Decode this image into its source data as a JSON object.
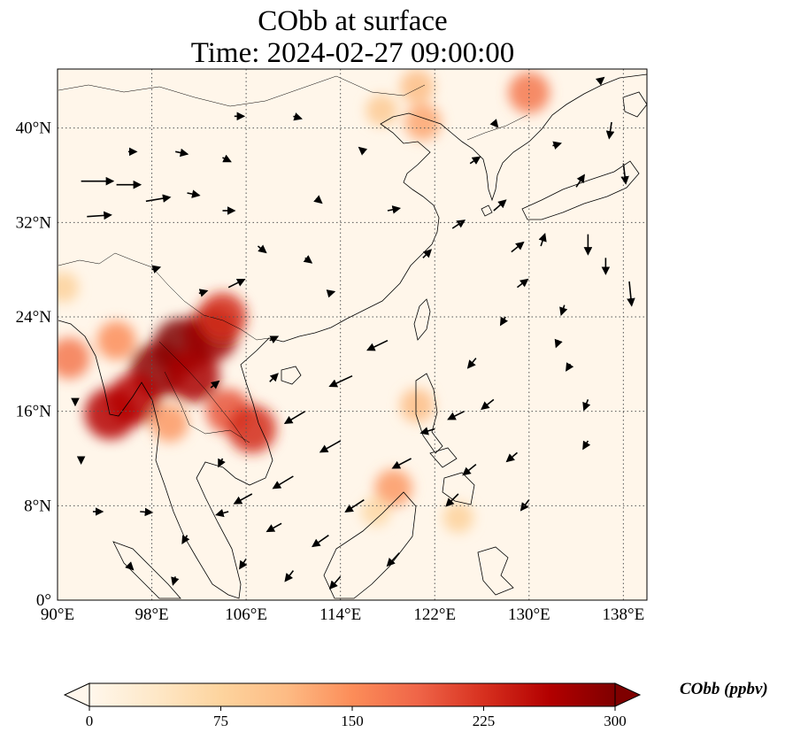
{
  "title_line1": "CObb at surface",
  "title_line2": "Time: 2024-02-27 09:00:00",
  "map": {
    "lon_range": [
      90,
      140
    ],
    "lat_range": [
      0,
      45
    ],
    "lon_ticks": [
      {
        "value": 90,
        "label": "90°E"
      },
      {
        "value": 98,
        "label": "98°E"
      },
      {
        "value": 106,
        "label": "106°E"
      },
      {
        "value": 114,
        "label": "114°E"
      },
      {
        "value": 122,
        "label": "122°E"
      },
      {
        "value": 130,
        "label": "130°E"
      },
      {
        "value": 138,
        "label": "138°E"
      }
    ],
    "lat_ticks": [
      {
        "value": 0,
        "label": "0°"
      },
      {
        "value": 8,
        "label": "8°N"
      },
      {
        "value": 16,
        "label": "16°N"
      },
      {
        "value": 24,
        "label": "24°N"
      },
      {
        "value": 32,
        "label": "32°N"
      },
      {
        "value": 40,
        "label": "40°N"
      }
    ],
    "gridlines": true
  },
  "colorbar": {
    "label": "CObb (ppbv)",
    "min": 0,
    "max": 300,
    "ticks": [
      0,
      75,
      150,
      225,
      300
    ],
    "colormap": "OrRd",
    "stops": [
      "#fff7ec",
      "#fee8c8",
      "#fdd49e",
      "#fdbb84",
      "#fc8d59",
      "#ef6548",
      "#d7301f",
      "#b30000",
      "#7f0000"
    ],
    "extend": "both"
  },
  "plumes": [
    {
      "lon": 100.5,
      "lat": 21.5,
      "value": 300
    },
    {
      "lon": 98.5,
      "lat": 19.5,
      "value": 290
    },
    {
      "lon": 96.5,
      "lat": 17.0,
      "value": 260
    },
    {
      "lon": 94.5,
      "lat": 15.8,
      "value": 260
    },
    {
      "lon": 101.5,
      "lat": 19.0,
      "value": 270
    },
    {
      "lon": 103.0,
      "lat": 22.5,
      "value": 280
    },
    {
      "lon": 104.0,
      "lat": 24.0,
      "value": 230
    },
    {
      "lon": 104.5,
      "lat": 16.0,
      "value": 200
    },
    {
      "lon": 106.5,
      "lat": 14.5,
      "value": 230
    },
    {
      "lon": 99.5,
      "lat": 15.0,
      "value": 140
    },
    {
      "lon": 95.0,
      "lat": 22.0,
      "value": 150
    },
    {
      "lon": 91.0,
      "lat": 20.5,
      "value": 170
    },
    {
      "lon": 90.5,
      "lat": 26.5,
      "value": 80
    },
    {
      "lon": 121.0,
      "lat": 40.5,
      "value": 130
    },
    {
      "lon": 120.5,
      "lat": 43.5,
      "value": 110
    },
    {
      "lon": 117.5,
      "lat": 41.5,
      "value": 90
    },
    {
      "lon": 130.0,
      "lat": 43.0,
      "value": 170
    },
    {
      "lon": 120.5,
      "lat": 16.5,
      "value": 110
    },
    {
      "lon": 118.5,
      "lat": 9.5,
      "value": 140
    },
    {
      "lon": 124.0,
      "lat": 7.0,
      "value": 80
    },
    {
      "lon": 117.0,
      "lat": 7.5,
      "value": 70
    }
  ],
  "wind_vectors": [
    {
      "lon": 92,
      "lat": 35.5,
      "u": 4,
      "v": 0
    },
    {
      "lon": 95,
      "lat": 35.2,
      "u": 3,
      "v": 0
    },
    {
      "lon": 97.5,
      "lat": 33.8,
      "u": 3,
      "v": 0.5
    },
    {
      "lon": 92.5,
      "lat": 32.5,
      "u": 3,
      "v": 0.2
    },
    {
      "lon": 96,
      "lat": 38,
      "u": 1,
      "v": 0
    },
    {
      "lon": 100,
      "lat": 38,
      "u": 1.5,
      "v": -0.3
    },
    {
      "lon": 104,
      "lat": 37.5,
      "u": 1,
      "v": -0.5
    },
    {
      "lon": 101,
      "lat": 34.5,
      "u": 1.5,
      "v": -0.3
    },
    {
      "lon": 104,
      "lat": 33,
      "u": 1.5,
      "v": 0
    },
    {
      "lon": 102,
      "lat": 26,
      "u": 1,
      "v": 0.3
    },
    {
      "lon": 104.5,
      "lat": 26.5,
      "u": 2,
      "v": 1
    },
    {
      "lon": 98,
      "lat": 28,
      "u": 1,
      "v": 0.3
    },
    {
      "lon": 107,
      "lat": 30,
      "u": 1,
      "v": -0.8
    },
    {
      "lon": 111,
      "lat": 29,
      "u": 0.8,
      "v": -0.6
    },
    {
      "lon": 108,
      "lat": 22,
      "u": 1,
      "v": 0.5
    },
    {
      "lon": 113,
      "lat": 26,
      "u": 0.7,
      "v": 0.2
    },
    {
      "lon": 112,
      "lat": 34,
      "u": 0.6,
      "v": -0.5
    },
    {
      "lon": 116,
      "lat": 38,
      "u": -0.6,
      "v": 0.5
    },
    {
      "lon": 110,
      "lat": 41,
      "u": 1,
      "v": -0.3
    },
    {
      "lon": 105,
      "lat": 41,
      "u": 1.2,
      "v": 0
    },
    {
      "lon": 118,
      "lat": 33,
      "u": 1.5,
      "v": 0.3
    },
    {
      "lon": 121,
      "lat": 29,
      "u": 1,
      "v": 1
    },
    {
      "lon": 123.5,
      "lat": 31.5,
      "u": 1.5,
      "v": 1
    },
    {
      "lon": 125,
      "lat": 37,
      "u": 1.2,
      "v": 0.8
    },
    {
      "lon": 127,
      "lat": 33,
      "u": 1.5,
      "v": 1.3
    },
    {
      "lon": 129,
      "lat": 26.5,
      "u": 1.3,
      "v": 1
    },
    {
      "lon": 131,
      "lat": 30,
      "u": 0.5,
      "v": 1.5
    },
    {
      "lon": 134,
      "lat": 35,
      "u": 1,
      "v": 1.5
    },
    {
      "lon": 137,
      "lat": 40.5,
      "u": -0.3,
      "v": -2
    },
    {
      "lon": 138,
      "lat": 37,
      "u": 0.3,
      "v": -2.5
    },
    {
      "lon": 135,
      "lat": 31,
      "u": 0,
      "v": -2.5
    },
    {
      "lon": 136.5,
      "lat": 29,
      "u": 0,
      "v": -2
    },
    {
      "lon": 138.5,
      "lat": 27,
      "u": 0.3,
      "v": -3
    },
    {
      "lon": 133,
      "lat": 25,
      "u": -0.4,
      "v": -1.2
    },
    {
      "lon": 128,
      "lat": 24,
      "u": -0.6,
      "v": -1
    },
    {
      "lon": 125.5,
      "lat": 20.5,
      "u": -1,
      "v": -1.2
    },
    {
      "lon": 133.5,
      "lat": 20,
      "u": -0.5,
      "v": -0.8
    },
    {
      "lon": 135,
      "lat": 17,
      "u": -0.5,
      "v": -1.3
    },
    {
      "lon": 135,
      "lat": 13.5,
      "u": -0.6,
      "v": -1
    },
    {
      "lon": 127,
      "lat": 17,
      "u": -1.5,
      "v": -1.2
    },
    {
      "lon": 124.5,
      "lat": 16,
      "u": -2,
      "v": -1
    },
    {
      "lon": 118,
      "lat": 22,
      "u": -2.5,
      "v": -1.2
    },
    {
      "lon": 115,
      "lat": 19,
      "u": -2.8,
      "v": -1.3
    },
    {
      "lon": 111,
      "lat": 16,
      "u": -2.5,
      "v": -1.5
    },
    {
      "lon": 114,
      "lat": 13.5,
      "u": -2.5,
      "v": -1.4
    },
    {
      "lon": 110,
      "lat": 10.5,
      "u": -2.5,
      "v": -1.5
    },
    {
      "lon": 106.5,
      "lat": 9,
      "u": -2.2,
      "v": -1.2
    },
    {
      "lon": 116,
      "lat": 8.5,
      "u": -2.3,
      "v": -1.5
    },
    {
      "lon": 113,
      "lat": 5.5,
      "u": -2,
      "v": -1.4
    },
    {
      "lon": 109,
      "lat": 6.5,
      "u": -1.8,
      "v": -1
    },
    {
      "lon": 104.5,
      "lat": 7.5,
      "u": -1.5,
      "v": -0.4
    },
    {
      "lon": 120,
      "lat": 12,
      "u": -2.3,
      "v": -1.2
    },
    {
      "lon": 125.5,
      "lat": 11.5,
      "u": -1.6,
      "v": -1.3
    },
    {
      "lon": 129,
      "lat": 12.5,
      "u": -1.3,
      "v": -1.1
    },
    {
      "lon": 130,
      "lat": 8.5,
      "u": -1,
      "v": -1.3
    },
    {
      "lon": 124,
      "lat": 9,
      "u": -1.5,
      "v": -1.5
    },
    {
      "lon": 119,
      "lat": 4,
      "u": -1.5,
      "v": -1.6
    },
    {
      "lon": 114,
      "lat": 2,
      "u": -1.3,
      "v": -1.5
    },
    {
      "lon": 110,
      "lat": 2.5,
      "u": -1,
      "v": -1.3
    },
    {
      "lon": 106,
      "lat": 3.5,
      "u": -0.8,
      "v": -1.2
    },
    {
      "lon": 101,
      "lat": 5.5,
      "u": -0.6,
      "v": -1
    },
    {
      "lon": 97,
      "lat": 7.5,
      "u": 1.5,
      "v": -0.1
    },
    {
      "lon": 93,
      "lat": 7.5,
      "u": 1.2,
      "v": 0
    },
    {
      "lon": 96,
      "lat": 3,
      "u": 0.6,
      "v": -0.6
    },
    {
      "lon": 100,
      "lat": 2,
      "u": -0.3,
      "v": -1
    },
    {
      "lon": 92,
      "lat": 12,
      "u": 0,
      "v": -0.6
    },
    {
      "lon": 91.5,
      "lat": 17,
      "u": 0,
      "v": -0.7
    },
    {
      "lon": 104,
      "lat": 12,
      "u": -0.5,
      "v": -1
    },
    {
      "lon": 108,
      "lat": 18.5,
      "u": 1,
      "v": 1
    },
    {
      "lon": 103,
      "lat": 18,
      "u": 1,
      "v": 0.8
    },
    {
      "lon": 127,
      "lat": 40.5,
      "u": 0.5,
      "v": -0.6
    },
    {
      "lon": 132,
      "lat": 38.5,
      "u": 1,
      "v": 0.3
    },
    {
      "lon": 136,
      "lat": 44,
      "u": 0.5,
      "v": 0.4
    },
    {
      "lon": 128.5,
      "lat": 29.5,
      "u": 1.5,
      "v": 1.2
    },
    {
      "lon": 132.5,
      "lat": 22,
      "u": -0.3,
      "v": -0.8
    },
    {
      "lon": 122,
      "lat": 14.5,
      "u": -1.7,
      "v": -0.5
    }
  ]
}
